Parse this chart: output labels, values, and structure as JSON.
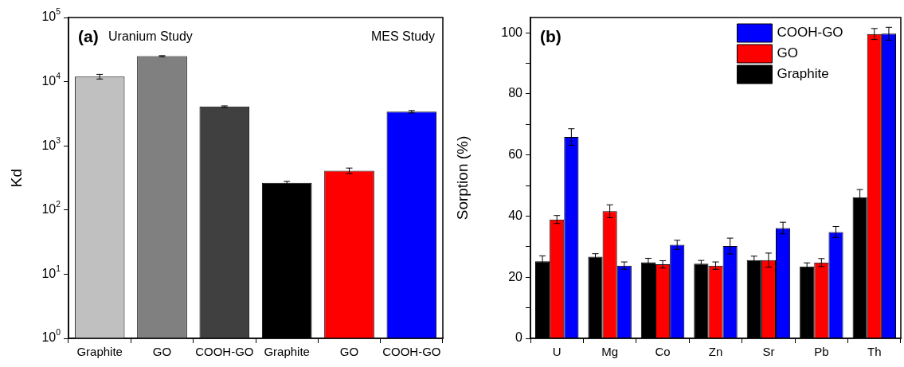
{
  "chart_data": [
    {
      "type": "bar",
      "ylabel": "Kd",
      "log": true,
      "categories": [
        "Graphite",
        "GO",
        "COOH-GO",
        "Graphite",
        "GO",
        "COOH-GO"
      ],
      "values": [
        12000,
        25000,
        4100,
        265,
        410,
        3400
      ],
      "errors": [
        1000,
        500,
        100,
        15,
        40,
        150
      ],
      "colors": [
        "#c0c0c0",
        "#808080",
        "#404040",
        "#000000",
        "#ff0000",
        "#0000ff"
      ],
      "ylim": [
        1,
        100000
      ],
      "yticks": [
        {
          "value": 1,
          "label": "10$^{0}$"
        },
        {
          "value": 10,
          "label": "10$^{1}$"
        },
        {
          "value": 100,
          "label": "10$^{2}$"
        },
        {
          "value": 1000,
          "label": "10$^{3}$"
        },
        {
          "value": 10000,
          "label": "10$^{4}$"
        },
        {
          "value": 100000,
          "label": "10$^{5}$"
        }
      ],
      "annotations": [
        "(a)",
        "Uranium Study",
        "MES Study"
      ],
      "grid": false,
      "legend": false
    },
    {
      "type": "bar",
      "ylabel": "Sorption (%)",
      "categories": [
        "U",
        "Mg",
        "Co",
        "Zn",
        "Sr",
        "Pb",
        "Th"
      ],
      "series": [
        {
          "name": "Graphite",
          "color": "#000000",
          "values": [
            25.2,
            26.7,
            24.9,
            24.4,
            25.6,
            23.5,
            46.2
          ],
          "errors": [
            1.8,
            1,
            1.3,
            1.1,
            1.3,
            1.2,
            2.5
          ]
        },
        {
          "name": "GO",
          "color": "#ff0000",
          "values": [
            38.9,
            41.6,
            24.2,
            23.8,
            25.6,
            24.8,
            99.6
          ],
          "errors": [
            1.3,
            2.1,
            1.2,
            1.2,
            2.3,
            1.3,
            1.8
          ]
        },
        {
          "name": "COOH-GO",
          "color": "#0000ff",
          "values": [
            65.9,
            23.8,
            30.6,
            30.2,
            36.1,
            34.8,
            99.7
          ],
          "errors": [
            2.7,
            1.2,
            1.5,
            2.6,
            1.9,
            1.8,
            2.1
          ]
        }
      ],
      "ylim": [
        0,
        105
      ],
      "yticks": [
        0,
        {
          "value": 10,
          "label": null
        },
        20,
        {
          "value": 30,
          "label": null
        },
        40,
        {
          "value": 50,
          "label": null
        },
        60,
        {
          "value": 70,
          "label": null
        },
        80,
        {
          "value": 90,
          "label": null
        },
        100
      ],
      "annotations": [
        "(b)"
      ],
      "grid": false,
      "legend": "top right"
    }
  ]
}
